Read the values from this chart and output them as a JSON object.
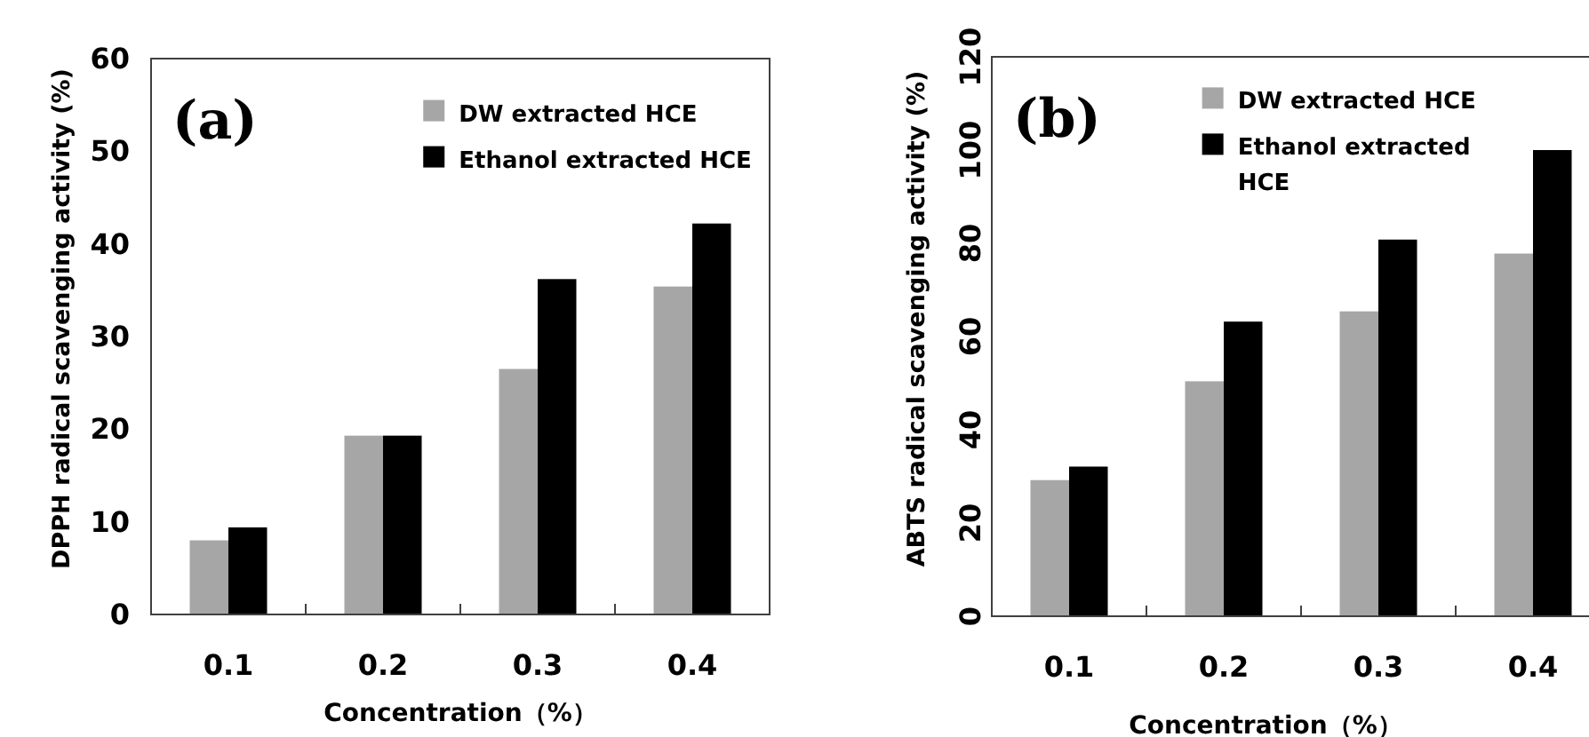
{
  "chart_data": [
    {
      "type": "bar",
      "categories": [
        "0.1",
        "0.2",
        "0.3",
        "0.4"
      ],
      "xlabel": "Concentration（%）",
      "ylabel": "DPPH radical scavenging activity (%)",
      "ylim": [
        0,
        60
      ],
      "yticks": [
        0,
        10,
        20,
        30,
        40,
        50,
        60
      ],
      "legend": "top right",
      "annotations": [
        "(a)"
      ],
      "series": [
        {
          "name": "DW extracted HCE",
          "color": "#a6a6a6",
          "values": [
            8.0,
            19.3,
            26.5,
            35.4
          ]
        },
        {
          "name": "Ethanol extracted HCE",
          "color": "#000000",
          "values": [
            9.4,
            19.3,
            36.2,
            42.2
          ]
        }
      ]
    },
    {
      "type": "bar",
      "categories": [
        "0.1",
        "0.2",
        "0.3",
        "0.4"
      ],
      "xlabel": "Concentration（%）",
      "ylabel": "ABTS radical scavenging activity (%)",
      "ylim": [
        0,
        120
      ],
      "yticks": [
        0,
        20,
        40,
        60,
        80,
        100,
        120
      ],
      "legend": "top",
      "annotations": [
        "(b)"
      ],
      "series": [
        {
          "name": "DW extracted HCE",
          "color": "#a6a6a6",
          "values": [
            29.2,
            50.4,
            65.4,
            77.8
          ]
        },
        {
          "name": "Ethanol extracted\nHCE",
          "color": "#000000",
          "values": [
            32.1,
            63.2,
            80.8,
            100
          ]
        }
      ]
    }
  ]
}
